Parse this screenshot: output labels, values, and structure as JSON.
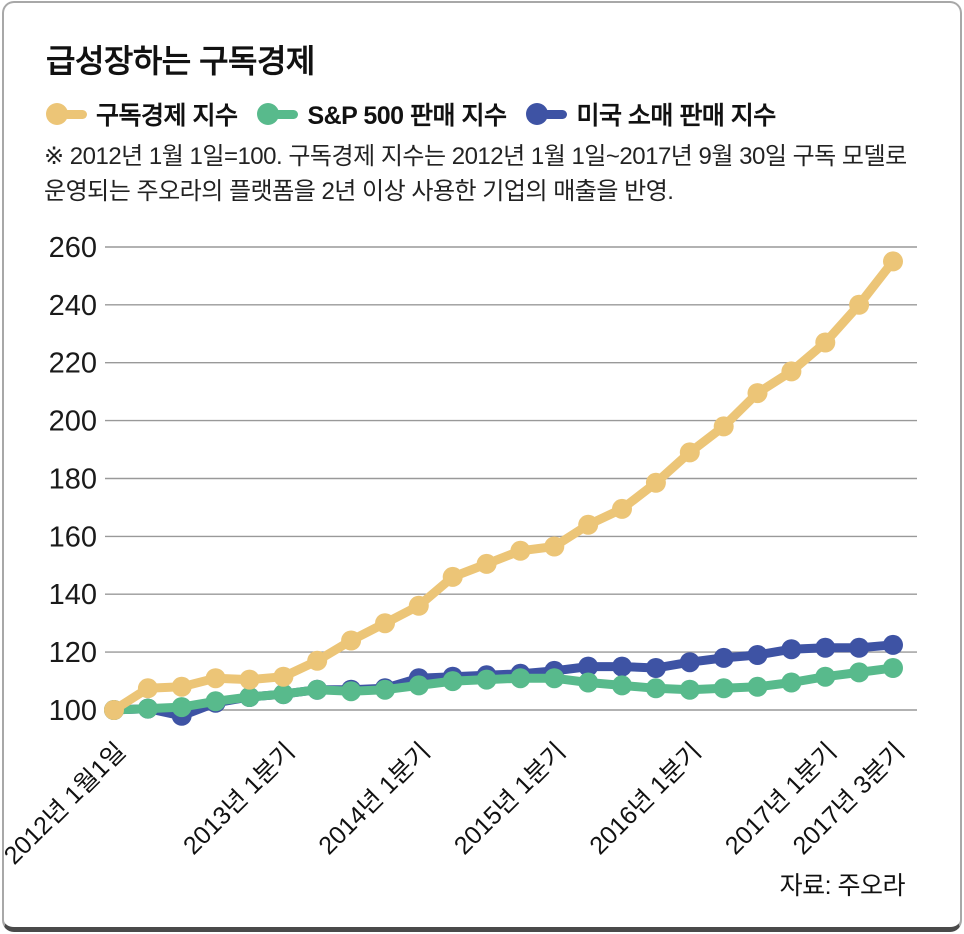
{
  "header": {
    "title": "급성장하는 구독경제",
    "note": "※ 2012년 1월 1일=100. 구독경제 지수는 2012년 1월 1일~2017년 9월 30일 구독 모델로 운영되는 주오라의 플랫폼을 2년 이상 사용한 기업의 매출을 반영."
  },
  "footer": {
    "source": "자료: 주오라"
  },
  "colors": {
    "subscription_index": "#ecc577",
    "sp500_sales_index": "#58ba8c",
    "us_retail_index": "#3e53a4",
    "gridline": "#999999",
    "text": "#1a1a1a"
  },
  "chart_data": {
    "type": "line",
    "title": "급성장하는 구독경제",
    "baseline_note": "2012년 1월 1일=100",
    "xlabel": "",
    "ylabel": "",
    "ylim": [
      100,
      260
    ],
    "grid": true,
    "legend_position": "top",
    "y_ticks": [
      100,
      120,
      140,
      160,
      180,
      200,
      220,
      240,
      260
    ],
    "x_ticks": [
      {
        "index": 0,
        "label": "2012년 1월1일"
      },
      {
        "index": 5,
        "label": "2013년 1분기"
      },
      {
        "index": 9,
        "label": "2014년 1분기"
      },
      {
        "index": 13,
        "label": "2015년 1분기"
      },
      {
        "index": 17,
        "label": "2016년 1분기"
      },
      {
        "index": 21,
        "label": "2017년 1분기"
      },
      {
        "index": 23,
        "label": "2017년 3분기"
      }
    ],
    "series": [
      {
        "name": "구독경제 지수",
        "color": "#ecc577",
        "values": [
          100,
          107.5,
          108,
          111,
          110.5,
          111.5,
          117,
          124,
          130,
          136,
          146,
          150.5,
          155,
          156.5,
          164,
          169.5,
          178.5,
          189,
          198,
          209.5,
          217,
          227,
          240,
          255
        ]
      },
      {
        "name": "S&P 500 판매 지수",
        "color": "#58ba8c",
        "values": [
          100,
          100.5,
          101,
          103,
          104.5,
          105.5,
          107,
          106.5,
          107,
          108.5,
          110,
          110.5,
          111,
          111,
          109.5,
          108.5,
          107.5,
          107,
          107.5,
          108,
          109.5,
          111.5,
          113,
          114.5
        ]
      },
      {
        "name": "미국 소매 판매 지수",
        "color": "#3e53a4",
        "values": [
          100,
          100.5,
          98,
          102.5,
          104.5,
          105.5,
          107,
          107,
          107.5,
          111,
          111.5,
          112,
          112.5,
          113.5,
          115,
          115,
          114.5,
          116.5,
          118,
          119,
          121,
          121.5,
          121.5,
          122.5
        ]
      }
    ]
  }
}
